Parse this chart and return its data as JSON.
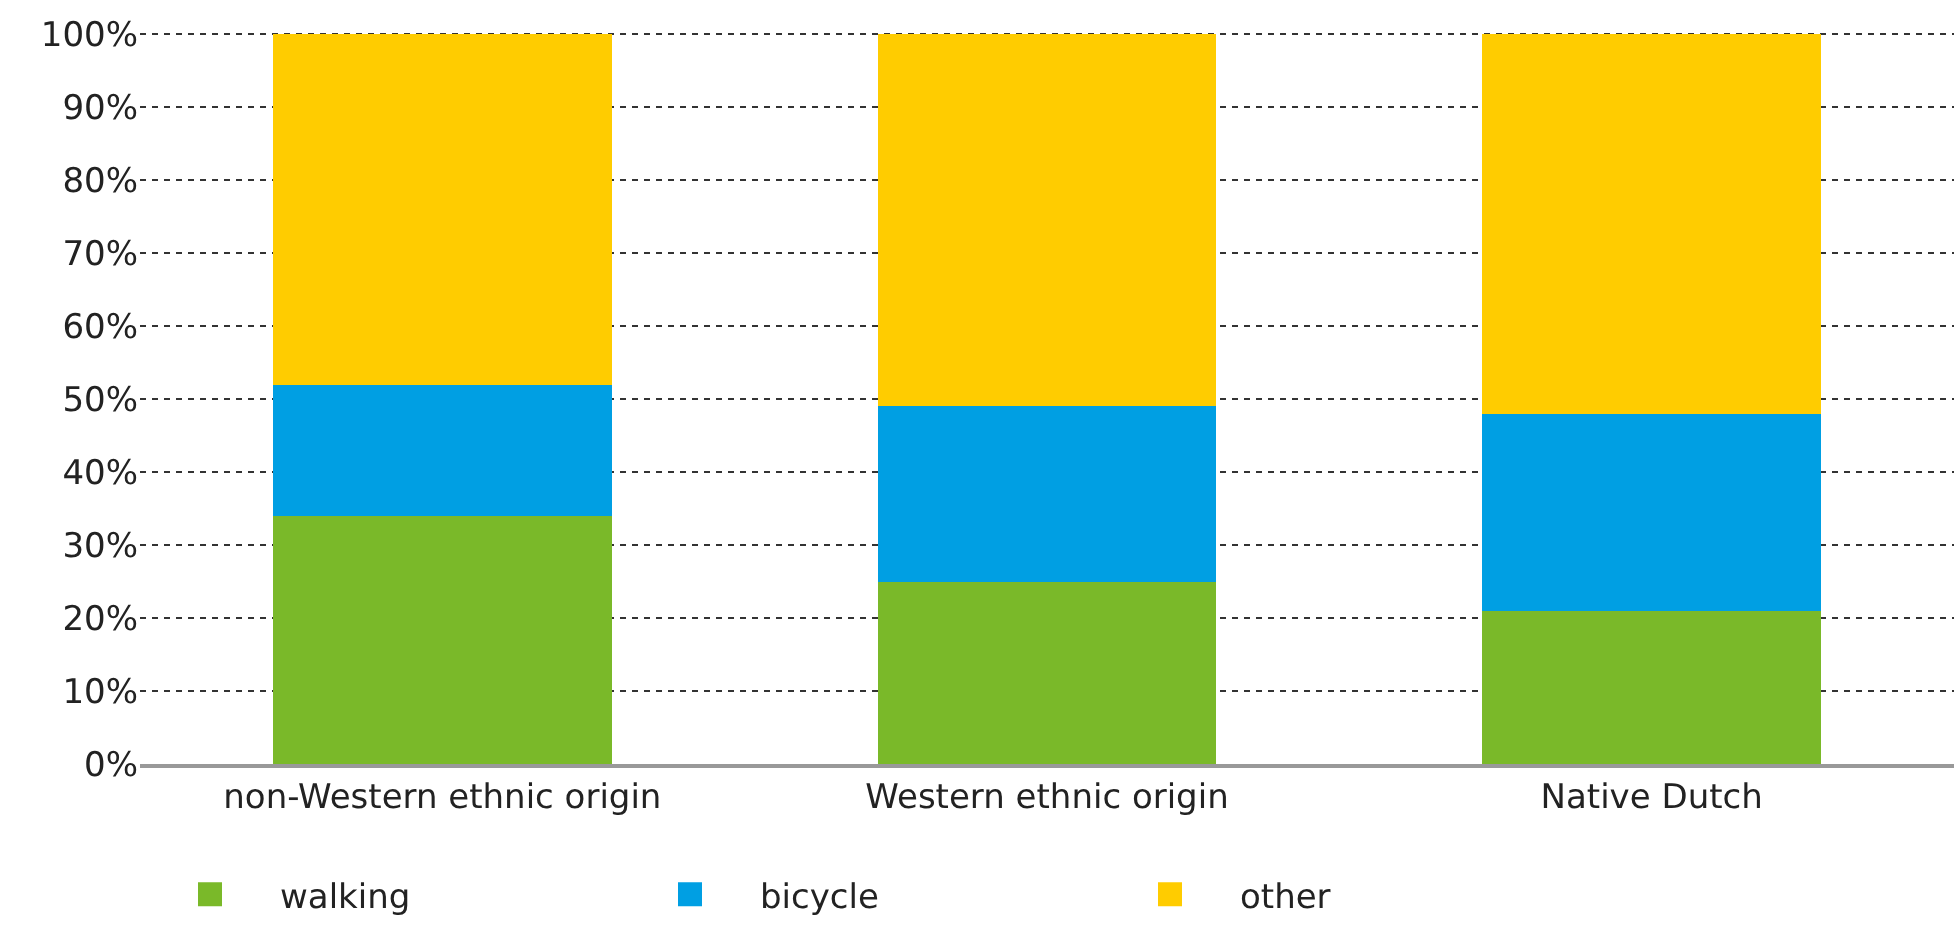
{
  "chart_data": {
    "type": "bar",
    "stacked": true,
    "categories": [
      "non-Western ethnic origin",
      "Western ethnic origin",
      "Native Dutch"
    ],
    "series": [
      {
        "name": "walking",
        "color": "#7ab929",
        "values": [
          34,
          25,
          21
        ]
      },
      {
        "name": "bicycle",
        "color": "#009fe3",
        "values": [
          18,
          24,
          27
        ]
      },
      {
        "name": "other",
        "color": "#ffcc00",
        "values": [
          48,
          51,
          52
        ]
      }
    ],
    "ylim": [
      0,
      100
    ],
    "yticks": [
      {
        "value": 0,
        "label": "0%"
      },
      {
        "value": 10,
        "label": "10%"
      },
      {
        "value": 20,
        "label": "20%"
      },
      {
        "value": 30,
        "label": "30%"
      },
      {
        "value": 40,
        "label": "40%"
      },
      {
        "value": 50,
        "label": "50%"
      },
      {
        "value": 60,
        "label": "60%"
      },
      {
        "value": 70,
        "label": "70%"
      },
      {
        "value": 80,
        "label": "80%"
      },
      {
        "value": 90,
        "label": "90%"
      },
      {
        "value": 100,
        "label": "100%"
      }
    ],
    "grid": "y",
    "legend": "bottom left"
  }
}
